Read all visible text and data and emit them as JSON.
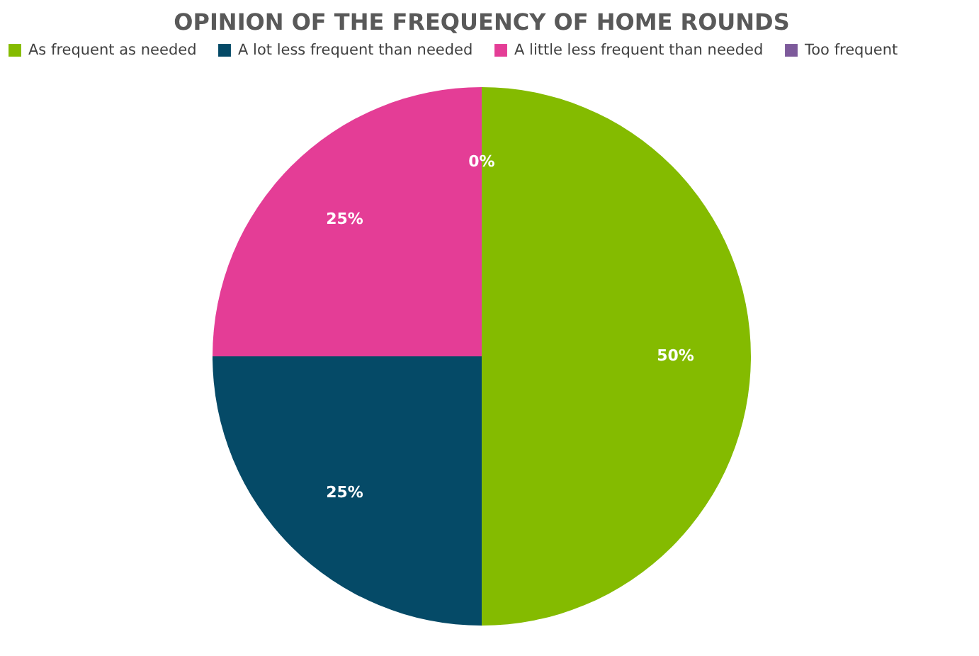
{
  "chart_data": {
    "type": "pie",
    "title": "OPINION OF THE FREQUENCY OF HOME ROUNDS",
    "categories": [
      "As frequent as needed",
      "A lot less frequent than needed",
      "A little less frequent than needed",
      "Too frequent"
    ],
    "values": [
      50,
      25,
      25,
      0
    ],
    "colors": [
      "#84bb00",
      "#054a67",
      "#e43d96",
      "#7d5a9b"
    ],
    "value_labels": [
      "50%",
      "25%",
      "25%",
      "0%"
    ],
    "legend": "top"
  }
}
